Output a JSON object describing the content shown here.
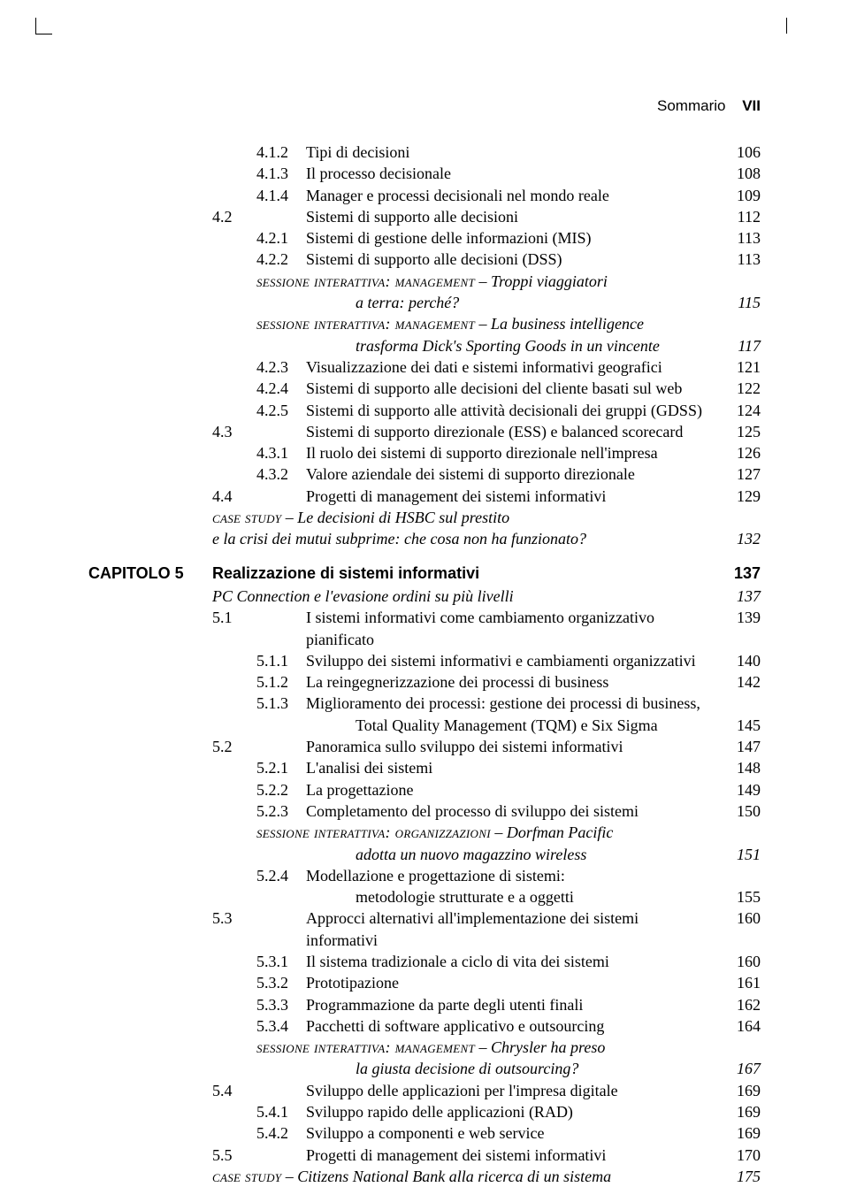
{
  "header": {
    "label": "Sommario",
    "pagenum": "VII"
  },
  "rows": [
    {
      "sub": "4.1.2",
      "text": "Tipi di decisioni",
      "page": "106"
    },
    {
      "sub": "4.1.3",
      "text": "Il processo decisionale",
      "page": "108"
    },
    {
      "sub": "4.1.4",
      "text": "Manager e processi decisionali nel mondo reale",
      "page": "109"
    },
    {
      "sec": "4.2",
      "text": "Sistemi di supporto alle decisioni",
      "page": "112"
    },
    {
      "sub": "4.2.1",
      "text": "Sistemi di gestione delle informazioni (MIS)",
      "page": "113"
    },
    {
      "sub": "4.2.2",
      "text": "Sistemi di supporto alle decisioni (DSS)",
      "page": "113"
    },
    {
      "smallcaps": "sessione interattiva: management",
      "italic_rest": " – Troppi viaggiatori",
      "cont": true
    },
    {
      "indent": true,
      "italic": "a terra: perché?",
      "page": "115"
    },
    {
      "smallcaps": "sessione interattiva: management",
      "italic_rest": " – La business intelligence",
      "cont": true
    },
    {
      "indent": true,
      "italic": "trasforma Dick's Sporting Goods in un vincente",
      "page": "117"
    },
    {
      "sub": "4.2.3",
      "text": "Visualizzazione dei dati e sistemi informativi geografici",
      "page": "121"
    },
    {
      "sub": "4.2.4",
      "text": "Sistemi di supporto alle decisioni del cliente basati sul web",
      "page": "122"
    },
    {
      "sub": "4.2.5",
      "text": "Sistemi di supporto alle attività decisionali dei gruppi (GDSS)",
      "page": "124"
    },
    {
      "sec": "4.3",
      "text": "Sistemi di supporto direzionale (ESS) e balanced scorecard",
      "page": "125"
    },
    {
      "sub": "4.3.1",
      "text": "Il ruolo dei sistemi di supporto direzionale nell'impresa",
      "page": "126"
    },
    {
      "sub": "4.3.2",
      "text": "Valore aziendale dei sistemi di supporto direzionale",
      "page": "127"
    },
    {
      "sec": "4.4",
      "text": "Progetti di management dei sistemi informativi",
      "page": "129"
    },
    {
      "smallcaps_sec": "case study",
      "italic_rest": " – Le decisioni di HSBC sul prestito",
      "cont": true
    },
    {
      "italic_sec": "e la crisi dei mutui subprime: che cosa non ha funzionato?",
      "page": "132"
    },
    {
      "chapter": "CAPITOLO 5",
      "chapter_title": "Realizzazione di sistemi informativi",
      "page": "137"
    },
    {
      "italic_sec": "PC Connection e l'evasione ordini su più livelli",
      "page": "137"
    },
    {
      "sec": "5.1",
      "text": "I sistemi informativi come cambiamento organizzativo pianificato",
      "page": "139"
    },
    {
      "sub": "5.1.1",
      "text": "Sviluppo dei sistemi informativi e cambiamenti organizzativi",
      "page": "140"
    },
    {
      "sub": "5.1.2",
      "text": "La reingegnerizzazione dei processi di business",
      "page": "142"
    },
    {
      "sub": "5.1.3",
      "text": "Miglioramento dei processi: gestione dei processi di business,",
      "cont": true
    },
    {
      "indent": true,
      "text": "Total Quality Management (TQM) e Six Sigma",
      "page": "145"
    },
    {
      "sec": "5.2",
      "text": "Panoramica sullo sviluppo dei sistemi informativi",
      "page": "147"
    },
    {
      "sub": "5.2.1",
      "text": "L'analisi dei sistemi",
      "page": "148"
    },
    {
      "sub": "5.2.2",
      "text": "La progettazione",
      "page": "149"
    },
    {
      "sub": "5.2.3",
      "text": "Completamento del processo di sviluppo dei sistemi",
      "page": "150"
    },
    {
      "smallcaps": "sessione interattiva: organizzazioni",
      "italic_rest": " – Dorfman Pacific",
      "cont": true
    },
    {
      "indent": true,
      "italic": "adotta un nuovo magazzino wireless",
      "page": "151"
    },
    {
      "sub": "5.2.4",
      "text": "Modellazione e progettazione di sistemi:",
      "cont": true
    },
    {
      "indent": true,
      "text": "metodologie strutturate e a oggetti",
      "page": "155"
    },
    {
      "sec": "5.3",
      "text": "Approcci alternativi all'implementazione dei sistemi informativi",
      "page": "160"
    },
    {
      "sub": "5.3.1",
      "text": "Il sistema tradizionale a ciclo di vita dei sistemi",
      "page": "160"
    },
    {
      "sub": "5.3.2",
      "text": "Prototipazione",
      "page": "161"
    },
    {
      "sub": "5.3.3",
      "text": "Programmazione da parte degli utenti finali",
      "page": "162"
    },
    {
      "sub": "5.3.4",
      "text": "Pacchetti di software applicativo e outsourcing",
      "page": "164"
    },
    {
      "smallcaps": "sessione interattiva: management",
      "italic_rest": " – Chrysler ha preso",
      "cont": true
    },
    {
      "indent": true,
      "italic": "la giusta decisione di outsourcing?",
      "page": "167"
    },
    {
      "sec": "5.4",
      "text": "Sviluppo delle applicazioni per l'impresa digitale",
      "page": "169"
    },
    {
      "sub": "5.4.1",
      "text": "Sviluppo rapido delle applicazioni (RAD)",
      "page": "169"
    },
    {
      "sub": "5.4.2",
      "text": "Sviluppo a componenti e web service",
      "page": "169"
    },
    {
      "sec": "5.5",
      "text": "Progetti di management dei sistemi informativi",
      "page": "170"
    },
    {
      "smallcaps_sec": "case study",
      "italic_rest": " – Citizens National Bank alla ricerca di un sistema",
      "page": "175"
    }
  ]
}
